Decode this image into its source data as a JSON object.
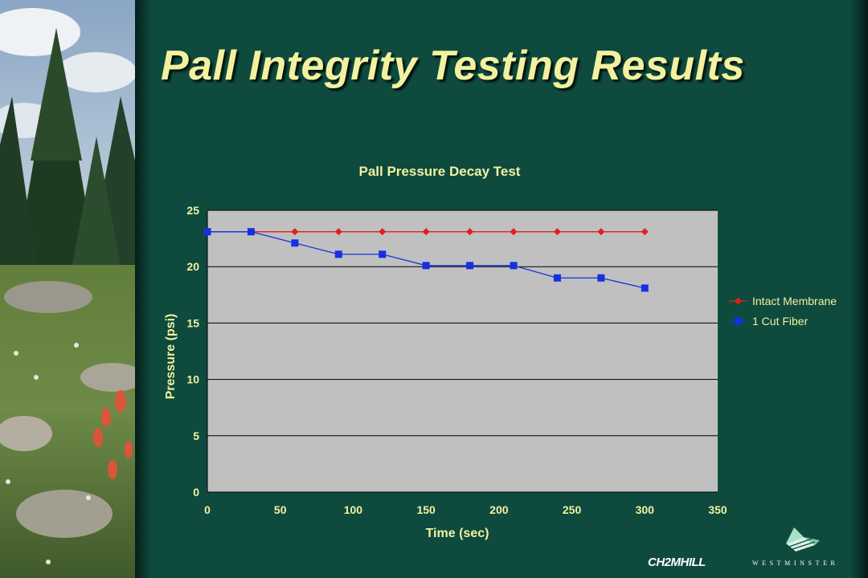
{
  "slide": {
    "title": "Pall Integrity Testing Results",
    "background_color": "#0e4a3e",
    "title_color": "#f3f1a0"
  },
  "chart_data": {
    "type": "line",
    "title": "Pall Pressure Decay Test",
    "xlabel": "Time (sec)",
    "ylabel": "Pressure (psi)",
    "xlim": [
      0,
      350
    ],
    "ylim": [
      0,
      25
    ],
    "x_ticks": [
      0,
      50,
      100,
      150,
      200,
      250,
      300,
      350
    ],
    "y_ticks": [
      0,
      5,
      10,
      15,
      20,
      25
    ],
    "grid": "horizontal",
    "legend_position": "right",
    "plot_background": "#c0c0c0",
    "series": [
      {
        "name": "Intact Membrane",
        "color": "#e0201c",
        "marker": "diamond",
        "x": [
          0,
          30,
          60,
          90,
          120,
          150,
          180,
          210,
          240,
          270,
          300
        ],
        "y": [
          23.1,
          23.1,
          23.1,
          23.1,
          23.1,
          23.1,
          23.1,
          23.1,
          23.1,
          23.1,
          23.1
        ]
      },
      {
        "name": "1 Cut Fiber",
        "color": "#1530e0",
        "marker": "square",
        "x": [
          0,
          30,
          60,
          90,
          120,
          150,
          180,
          210,
          240,
          270,
          300
        ],
        "y": [
          23.1,
          23.1,
          22.1,
          21.1,
          21.1,
          20.1,
          20.1,
          20.1,
          19.0,
          19.0,
          18.1
        ]
      }
    ]
  },
  "logos": {
    "company": "CH2MHILL",
    "partner": "WESTMINSTER"
  }
}
